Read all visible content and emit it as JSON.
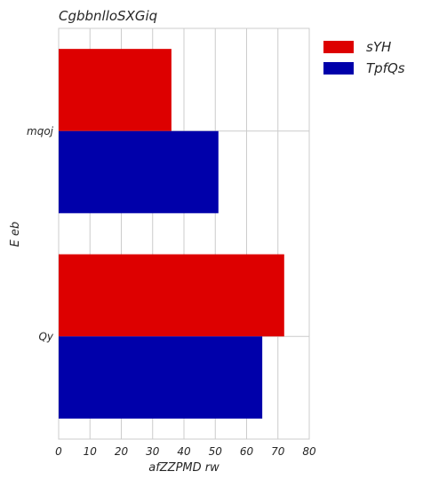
{
  "chart_data": {
    "type": "bar",
    "orientation": "horizontal",
    "title": "CgbbnlloSXGiq",
    "xlabel": "afZZPMD rw",
    "ylabel": "E eb",
    "categories": [
      "mqoj",
      "Qy"
    ],
    "series": [
      {
        "name": "sYH",
        "color": "#dd0000",
        "values": [
          36,
          72
        ]
      },
      {
        "name": "TpfQs",
        "color": "#0000aa",
        "values": [
          51,
          65
        ]
      }
    ],
    "xlim": [
      0,
      80
    ],
    "xticks": [
      "0",
      "10",
      "20",
      "30",
      "40",
      "50",
      "60",
      "70",
      "80"
    ],
    "grid": true,
    "legend_position": "outside-top-right"
  }
}
